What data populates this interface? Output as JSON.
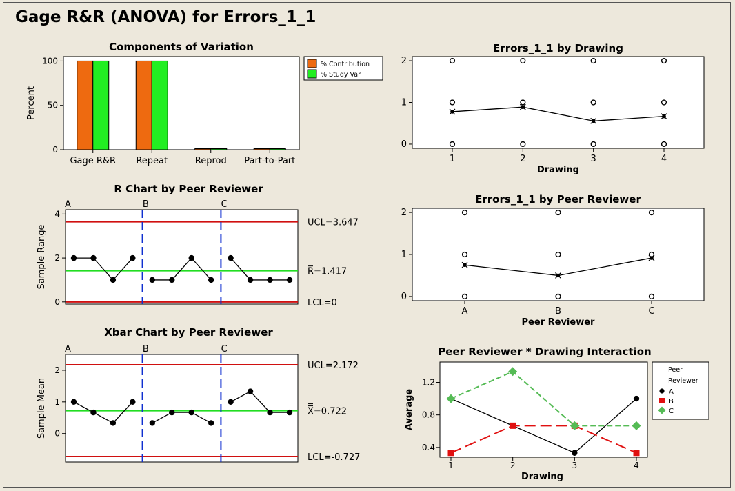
{
  "page": {
    "title": "Gage R&R (ANOVA) for Errors_1_1"
  },
  "chart_data": [
    {
      "id": "components",
      "type": "bar",
      "title": "Components of Variation",
      "ylabel": "Percent",
      "categories": [
        "Gage R&R",
        "Repeat",
        "Reprod",
        "Part-to-Part"
      ],
      "series": [
        {
          "name": "% Contribution",
          "values": [
            100,
            100,
            0,
            0
          ],
          "color": "#ee6a10"
        },
        {
          "name": "% Study Var",
          "values": [
            100,
            100,
            0,
            0
          ],
          "color": "#22ee22"
        }
      ],
      "ylim": [
        0,
        105
      ],
      "yticks": [
        0,
        50,
        100
      ]
    },
    {
      "id": "rchart",
      "type": "line",
      "title": "R Chart by Peer Reviewer",
      "ylabel": "Sample Range",
      "groups": [
        "A",
        "B",
        "C"
      ],
      "values": [
        2,
        2,
        1,
        2,
        1,
        1,
        2,
        1,
        2,
        1,
        1,
        1
      ],
      "ucl": 3.647,
      "center": 1.417,
      "lcl": 0,
      "ucl_label": "UCL=3.647",
      "center_label": "R=1.417",
      "lcl_label": "LCL=0",
      "ylim": [
        -0.1,
        4.2
      ],
      "yticks": [
        0,
        2,
        4
      ]
    },
    {
      "id": "xbar",
      "type": "line",
      "title": "Xbar Chart by Peer Reviewer",
      "ylabel": "Sample Mean",
      "groups": [
        "A",
        "B",
        "C"
      ],
      "values": [
        1,
        0.667,
        0.333,
        1,
        0.333,
        0.667,
        0.667,
        0.333,
        1,
        1.333,
        0.667,
        0.667
      ],
      "ucl": 2.172,
      "center": 0.722,
      "lcl": -0.727,
      "ucl_label": "UCL=2.172",
      "center_label": "X=0.722",
      "lcl_label": "LCL=-0.727",
      "ylim": [
        -0.9,
        2.5
      ],
      "yticks": [
        0,
        1,
        2
      ]
    },
    {
      "id": "bydrawing",
      "type": "scatter",
      "title": "Errors_1_1 by Drawing",
      "xlabel": "Drawing",
      "categories": [
        "1",
        "2",
        "3",
        "4"
      ],
      "points": [
        [
          0,
          1,
          2
        ],
        [
          0,
          1,
          2
        ],
        [
          0,
          1,
          2
        ],
        [
          0,
          1,
          2
        ]
      ],
      "means": [
        0.778,
        0.889,
        0.556,
        0.667
      ],
      "ylim": [
        -0.1,
        2.1
      ],
      "yticks": [
        0,
        1,
        2
      ]
    },
    {
      "id": "byreviewer",
      "type": "scatter",
      "title": "Errors_1_1 by Peer Reviewer",
      "xlabel": "Peer Reviewer",
      "categories": [
        "A",
        "B",
        "C"
      ],
      "points": [
        [
          0,
          1,
          2
        ],
        [
          0,
          1,
          2
        ],
        [
          0,
          1,
          2
        ]
      ],
      "means": [
        0.75,
        0.5,
        0.917
      ],
      "ylim": [
        -0.1,
        2.1
      ],
      "yticks": [
        0,
        1,
        2
      ]
    },
    {
      "id": "interaction",
      "type": "line",
      "title": "Peer Reviewer * Drawing Interaction",
      "xlabel": "Drawing",
      "ylabel": "Average",
      "categories": [
        "1",
        "2",
        "3",
        "4"
      ],
      "legend_title_1": "Peer",
      "legend_title_2": "Reviewer",
      "series": [
        {
          "name": "A",
          "values": [
            1,
            0.667,
            0.333,
            1
          ],
          "color": "#000000"
        },
        {
          "name": "B",
          "values": [
            0.333,
            0.667,
            0.667,
            0.333
          ],
          "color": "#e01010"
        },
        {
          "name": "C",
          "values": [
            1,
            1.333,
            0.667,
            0.667
          ],
          "color": "#55bb55"
        }
      ],
      "ylim": [
        0.28,
        1.45
      ],
      "yticks": [
        0.4,
        0.8,
        1.2
      ],
      "ytick_labels": [
        "0.4",
        "0.8",
        "1.2"
      ]
    }
  ]
}
